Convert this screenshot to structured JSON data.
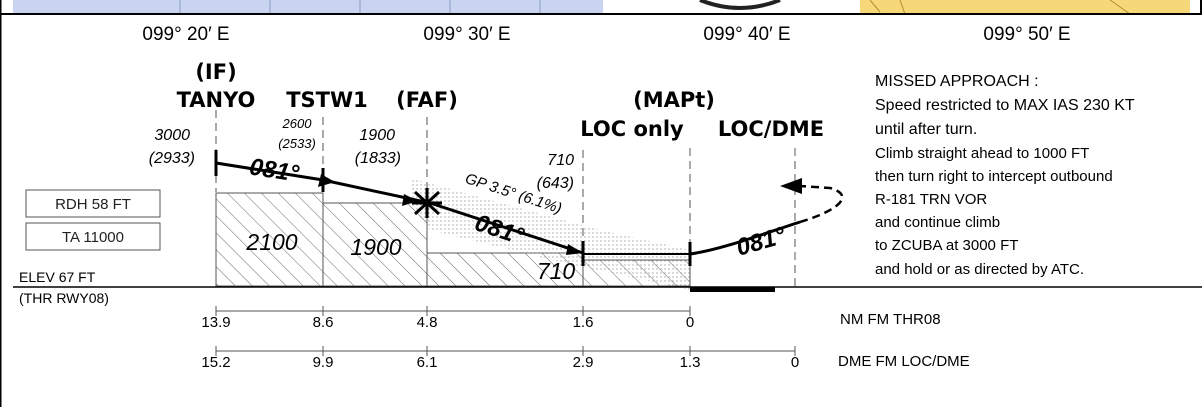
{
  "longitudes": [
    "099° 20′ E",
    "099° 30′ E",
    "099° 40′ E",
    "099° 50′ E"
  ],
  "fixes": {
    "if_label": "(IF)",
    "tanyo": "TANYO",
    "tstw1": "TSTW1",
    "faf_label": "(FAF)",
    "mapt_label": "(MAPt)",
    "loc_only": "LOC only",
    "loc_dme": "LOC/DME"
  },
  "altitudes": {
    "tanyo_alt": "3000",
    "tanyo_hgt": "(2933)",
    "tstw1_alt": "2600",
    "tstw1_hgt": "(2533)",
    "faf_alt": "1900",
    "faf_hgt": "(1833)",
    "mapt_alt": "710",
    "mapt_hgt": "(643)"
  },
  "tracks": {
    "inbound_1": "081°",
    "inbound_2": "081°",
    "missed": "081°"
  },
  "glidepath": "GP 3.5° (6.1%)",
  "boxes": {
    "rdh": "RDH 58 FT",
    "ta": "TA 11000"
  },
  "elevation": {
    "elev": "ELEV 67 FT",
    "thr": "(THR RWY08)"
  },
  "minimums": [
    "2100",
    "1900",
    "710"
  ],
  "missed_approach": {
    "title": "MISSED  APPROACH :",
    "lines": [
      "Speed restricted to MAX IAS 230 KT",
      "until after turn.",
      "Climb straight ahead to 1000 FT",
      "then turn right to intercept outbound",
      "R-181 TRN VOR",
      "and continue climb",
      "to ZCUBA at 3000 FT",
      "and hold or as directed by ATC."
    ]
  },
  "scale_thr": {
    "values": [
      "13.9",
      "8.6",
      "4.8",
      "1.6",
      "0"
    ],
    "label": "NM FM THR08"
  },
  "scale_dme": {
    "values": [
      "15.2",
      "9.9",
      "6.1",
      "2.9",
      "1.3",
      "0"
    ],
    "label": "DME FM LOC/DME"
  },
  "colors": {
    "map_blue": "#c9d5f0",
    "map_yellow": "#f6d77a",
    "hatch": "#666666",
    "gp_shade": "#bbbbbb"
  }
}
